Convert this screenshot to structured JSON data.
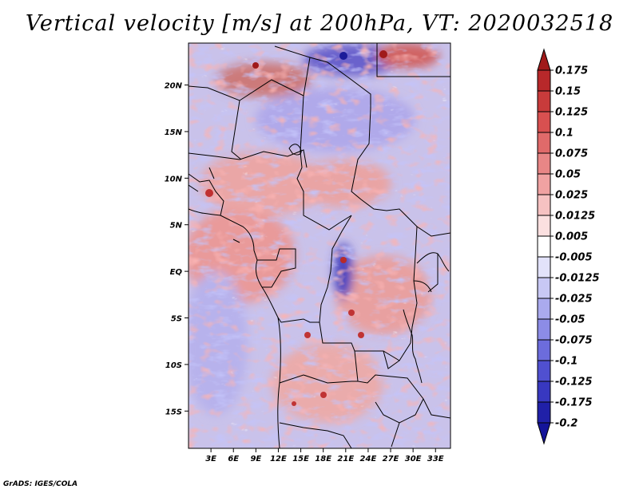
{
  "title": "Vertical velocity [m/s] at 200hPa, VT: 2020032518",
  "credit": "GrADS: IGES/COLA",
  "map": {
    "lon_range": [
      0,
      35
    ],
    "lat_range": [
      -19,
      24.5
    ],
    "lat_ticks": [
      {
        "value": 20,
        "label": "20N"
      },
      {
        "value": 15,
        "label": "15N"
      },
      {
        "value": 10,
        "label": "10N"
      },
      {
        "value": 5,
        "label": "5N"
      },
      {
        "value": 0,
        "label": "EQ"
      },
      {
        "value": -5,
        "label": "5S"
      },
      {
        "value": -10,
        "label": "10S"
      },
      {
        "value": -15,
        "label": "15S"
      }
    ],
    "lon_ticks": [
      {
        "value": 3,
        "label": "3E"
      },
      {
        "value": 6,
        "label": "6E"
      },
      {
        "value": 9,
        "label": "9E"
      },
      {
        "value": 12,
        "label": "12E"
      },
      {
        "value": 15,
        "label": "15E"
      },
      {
        "value": 18,
        "label": "18E"
      },
      {
        "value": 21,
        "label": "21E"
      },
      {
        "value": 24,
        "label": "24E"
      },
      {
        "value": 27,
        "label": "27E"
      },
      {
        "value": 30,
        "label": "30E"
      },
      {
        "value": 33,
        "label": "33E"
      }
    ]
  },
  "colorbar": {
    "levels": [
      "0.175",
      "0.15",
      "0.125",
      "0.1",
      "0.075",
      "0.05",
      "0.025",
      "0.0125",
      "0.005",
      "-0.005",
      "-0.0125",
      "-0.025",
      "-0.05",
      "-0.075",
      "-0.1",
      "-0.125",
      "-0.175",
      "-0.2"
    ],
    "colors": [
      "#a01a1a",
      "#b8282a",
      "#c83b3b",
      "#d85050",
      "#e06a6a",
      "#e88686",
      "#f0a2a2",
      "#f6c2c2",
      "#fbe0e0",
      "#ffffff",
      "#e2e2fa",
      "#c8c8f4",
      "#aaaaee",
      "#8c8ce6",
      "#6c6cdc",
      "#5050d0",
      "#3838c0",
      "#2020a8",
      "#14149a"
    ]
  }
}
